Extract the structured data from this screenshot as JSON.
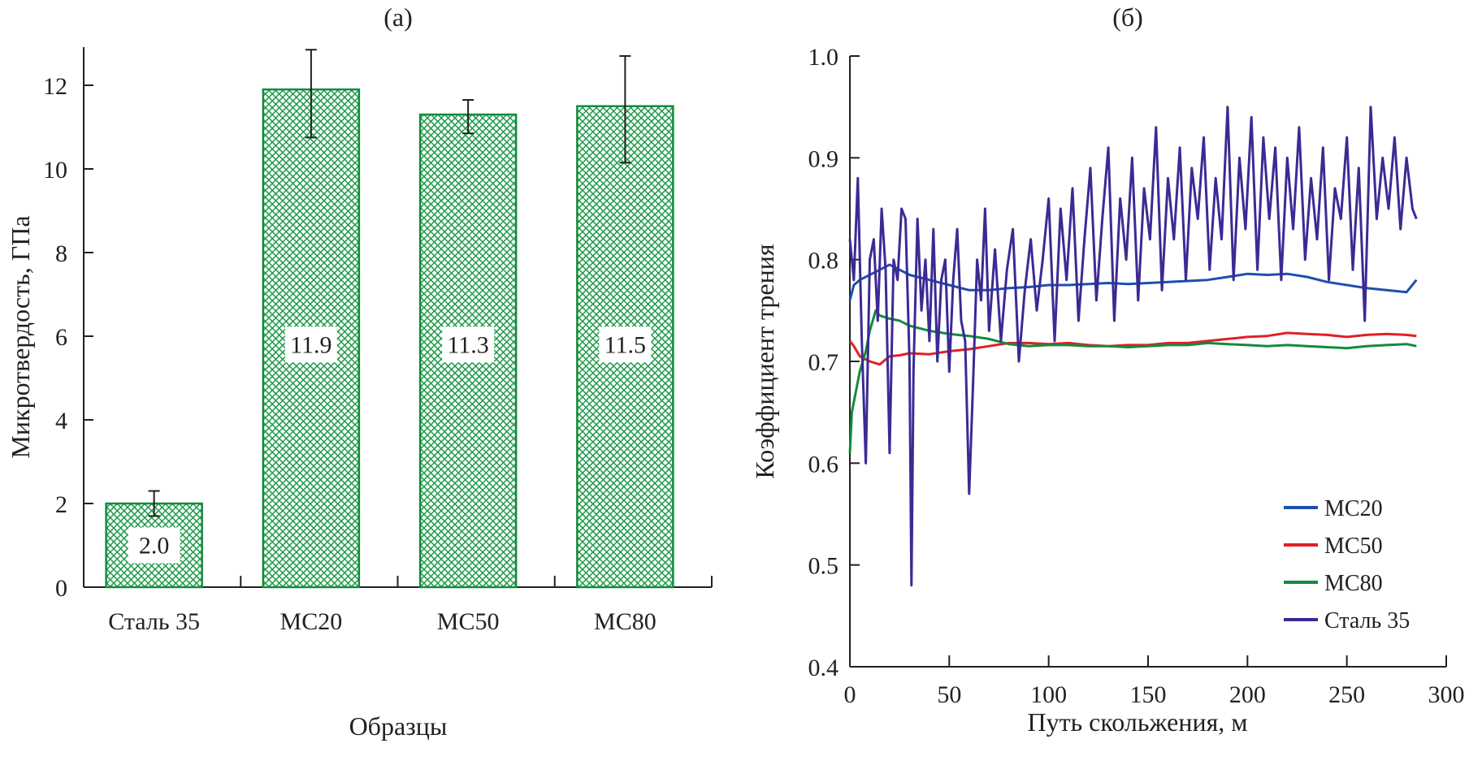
{
  "chart_data": [
    {
      "type": "bar",
      "panel_label": "(а)",
      "title": "",
      "xlabel": "Образцы",
      "ylabel": "Микротвердость, ГПа",
      "categories": [
        "Сталь 35",
        "МС20",
        "МС50",
        "МС80"
      ],
      "values": [
        2.0,
        11.9,
        11.3,
        11.5
      ],
      "value_labels": [
        "2.0",
        "11.9",
        "11.3",
        "11.5"
      ],
      "error_low": [
        1.7,
        10.75,
        10.85,
        10.15
      ],
      "error_high": [
        2.3,
        12.85,
        11.65,
        12.7
      ],
      "ylim": [
        0,
        12.9
      ],
      "yticks": [
        0,
        2,
        4,
        6,
        8,
        10,
        12
      ],
      "ytick_labels": [
        "0",
        "2",
        "4",
        "6",
        "8",
        "10",
        "12"
      ],
      "grid": false,
      "bar_fill": "crosshatch",
      "colors": {
        "bar": "#1f9a4a",
        "bar_edge": "#138a3c",
        "error": "#231f20"
      }
    },
    {
      "type": "line",
      "panel_label": "(б)",
      "title": "",
      "xlabel": "Путь скольжения, м",
      "ylabel": "Коэффициент трения",
      "xlim": [
        0,
        300
      ],
      "ylim": [
        0.4,
        1.0
      ],
      "xticks": [
        0,
        50,
        100,
        150,
        200,
        250,
        300
      ],
      "xtick_labels": [
        "0",
        "50",
        "100",
        "150",
        "200",
        "250",
        "300"
      ],
      "yticks": [
        0.4,
        0.5,
        0.6,
        0.7,
        0.8,
        0.9,
        1.0
      ],
      "ytick_labels": [
        "0.4",
        "0.5",
        "0.6",
        "0.7",
        "0.8",
        "0.9",
        "1.0"
      ],
      "grid": false,
      "legend_position": "bottom-right",
      "series": [
        {
          "name": "МС20",
          "color": "#1d4fb0",
          "x": [
            0,
            2,
            5,
            10,
            15,
            20,
            25,
            30,
            40,
            50,
            60,
            70,
            80,
            90,
            100,
            110,
            120,
            130,
            140,
            150,
            160,
            170,
            180,
            190,
            200,
            210,
            220,
            230,
            240,
            250,
            260,
            270,
            280,
            285
          ],
          "y": [
            0.76,
            0.775,
            0.78,
            0.785,
            0.79,
            0.795,
            0.79,
            0.785,
            0.78,
            0.775,
            0.77,
            0.77,
            0.772,
            0.773,
            0.775,
            0.775,
            0.776,
            0.777,
            0.776,
            0.777,
            0.778,
            0.779,
            0.78,
            0.783,
            0.786,
            0.785,
            0.786,
            0.783,
            0.778,
            0.775,
            0.772,
            0.77,
            0.768,
            0.78
          ]
        },
        {
          "name": "МС50",
          "color": "#e21f26",
          "x": [
            0,
            2,
            5,
            10,
            15,
            20,
            25,
            30,
            40,
            50,
            60,
            70,
            80,
            90,
            100,
            110,
            120,
            130,
            140,
            150,
            160,
            170,
            180,
            190,
            200,
            210,
            220,
            230,
            240,
            250,
            260,
            270,
            280,
            285
          ],
          "y": [
            0.72,
            0.715,
            0.705,
            0.7,
            0.697,
            0.705,
            0.706,
            0.708,
            0.707,
            0.71,
            0.712,
            0.715,
            0.718,
            0.718,
            0.717,
            0.718,
            0.716,
            0.715,
            0.716,
            0.716,
            0.718,
            0.718,
            0.72,
            0.722,
            0.724,
            0.725,
            0.728,
            0.727,
            0.726,
            0.724,
            0.726,
            0.727,
            0.726,
            0.725
          ]
        },
        {
          "name": "МС80",
          "color": "#138a3c",
          "x": [
            0,
            1,
            3,
            5,
            8,
            10,
            13,
            15,
            20,
            25,
            30,
            40,
            50,
            60,
            70,
            80,
            90,
            100,
            110,
            120,
            130,
            140,
            150,
            160,
            170,
            180,
            190,
            200,
            210,
            220,
            230,
            240,
            250,
            260,
            270,
            280,
            285
          ],
          "y": [
            0.61,
            0.65,
            0.67,
            0.69,
            0.71,
            0.73,
            0.75,
            0.745,
            0.742,
            0.74,
            0.735,
            0.73,
            0.727,
            0.725,
            0.722,
            0.717,
            0.715,
            0.716,
            0.716,
            0.715,
            0.715,
            0.714,
            0.715,
            0.716,
            0.716,
            0.718,
            0.717,
            0.716,
            0.715,
            0.716,
            0.715,
            0.714,
            0.713,
            0.715,
            0.716,
            0.717,
            0.715
          ]
        },
        {
          "name": "Сталь 35",
          "color": "#3b2a94",
          "x": [
            0,
            2,
            4,
            6,
            8,
            10,
            12,
            14,
            16,
            18,
            20,
            22,
            24,
            26,
            28,
            30,
            31,
            32,
            34,
            36,
            38,
            40,
            42,
            44,
            46,
            48,
            50,
            52,
            54,
            56,
            58,
            60,
            62,
            64,
            66,
            68,
            70,
            73,
            76,
            79,
            82,
            85,
            88,
            91,
            94,
            97,
            100,
            103,
            106,
            109,
            112,
            115,
            118,
            121,
            124,
            127,
            130,
            133,
            136,
            139,
            142,
            145,
            148,
            151,
            154,
            157,
            160,
            163,
            166,
            169,
            172,
            175,
            178,
            181,
            184,
            187,
            190,
            193,
            196,
            199,
            202,
            205,
            208,
            211,
            214,
            217,
            220,
            223,
            226,
            229,
            232,
            235,
            238,
            241,
            244,
            247,
            250,
            253,
            256,
            259,
            262,
            265,
            268,
            271,
            274,
            277,
            280,
            283,
            285
          ],
          "y": [
            0.82,
            0.78,
            0.88,
            0.72,
            0.6,
            0.8,
            0.82,
            0.74,
            0.85,
            0.79,
            0.61,
            0.8,
            0.78,
            0.85,
            0.84,
            0.7,
            0.48,
            0.69,
            0.84,
            0.75,
            0.8,
            0.72,
            0.83,
            0.7,
            0.78,
            0.8,
            0.69,
            0.78,
            0.83,
            0.74,
            0.72,
            0.57,
            0.68,
            0.8,
            0.76,
            0.85,
            0.73,
            0.81,
            0.72,
            0.79,
            0.83,
            0.7,
            0.77,
            0.82,
            0.75,
            0.8,
            0.86,
            0.72,
            0.85,
            0.78,
            0.87,
            0.74,
            0.82,
            0.89,
            0.76,
            0.84,
            0.91,
            0.74,
            0.86,
            0.8,
            0.9,
            0.76,
            0.87,
            0.82,
            0.93,
            0.77,
            0.88,
            0.82,
            0.91,
            0.78,
            0.89,
            0.84,
            0.92,
            0.79,
            0.88,
            0.82,
            0.95,
            0.78,
            0.9,
            0.83,
            0.94,
            0.79,
            0.92,
            0.84,
            0.91,
            0.78,
            0.9,
            0.83,
            0.93,
            0.8,
            0.88,
            0.82,
            0.91,
            0.78,
            0.87,
            0.84,
            0.92,
            0.79,
            0.89,
            0.74,
            0.95,
            0.84,
            0.9,
            0.85,
            0.92,
            0.83,
            0.9,
            0.85,
            0.84
          ]
        }
      ]
    }
  ]
}
